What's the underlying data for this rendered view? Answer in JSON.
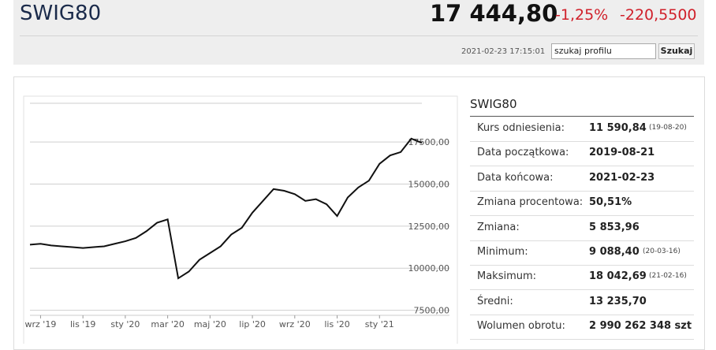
{
  "header": {
    "title": "SWIG80",
    "price": "17 444,80",
    "change_pct": "-1,25%",
    "change": "-220,5500",
    "timestamp": "2021-02-23 17:15:01",
    "search_value": "szukaj profilu",
    "search_button": "Szukaj"
  },
  "chart_data": {
    "type": "line",
    "categories": [
      null,
      "wrz '19",
      null,
      null,
      null,
      "lis '19",
      null,
      null,
      null,
      "sty '20",
      null,
      null,
      null,
      "mar '20",
      null,
      null,
      null,
      "maj '20",
      null,
      null,
      null,
      "lip '20",
      null,
      null,
      null,
      "wrz '20",
      null,
      null,
      null,
      "lis '20",
      null,
      null,
      null,
      "sty '21",
      null,
      null,
      null,
      null
    ],
    "series": [
      {
        "name": "SWIG80",
        "color": "#111111",
        "values": [
          11400,
          11450,
          11350,
          11300,
          11250,
          11200,
          11250,
          11300,
          11450,
          11600,
          11800,
          12200,
          12700,
          12900,
          9400,
          9800,
          10500,
          10900,
          11300,
          12000,
          12400,
          13300,
          14000,
          14700,
          14600,
          14400,
          14000,
          14100,
          13800,
          13100,
          14200,
          14800,
          15200,
          16200,
          16700,
          16900,
          17700,
          17444.8
        ]
      }
    ],
    "ylim": [
      7200,
      19800
    ],
    "yticks": [
      {
        "value": 7500,
        "label": "7500,00"
      },
      {
        "value": 10000,
        "label": "10000,00"
      },
      {
        "value": 12500,
        "label": "12500,00"
      },
      {
        "value": 15000,
        "label": "15000,00"
      },
      {
        "value": 17500,
        "label": "17500,00"
      }
    ],
    "grid": true
  },
  "table": {
    "title": "SWIG80",
    "rows": [
      [
        "Kurs odniesienia:",
        "11 590,84",
        "(19-08-20)"
      ],
      [
        "Data początkowa:",
        "2019-08-21"
      ],
      [
        "Data końcowa:",
        "2021-02-23"
      ],
      [
        "Zmiana procentowa:",
        "50,51%"
      ],
      [
        "Zmiana:",
        "5 853,96"
      ],
      [
        "Minimum:",
        "9 088,40",
        "(20-03-16)"
      ],
      [
        "Maksimum:",
        "18 042,69",
        "(21-02-16)"
      ],
      [
        "Średni:",
        "13 235,70"
      ],
      [
        "Wolumen obrotu:",
        "2 990 262 348 szt"
      ]
    ]
  }
}
